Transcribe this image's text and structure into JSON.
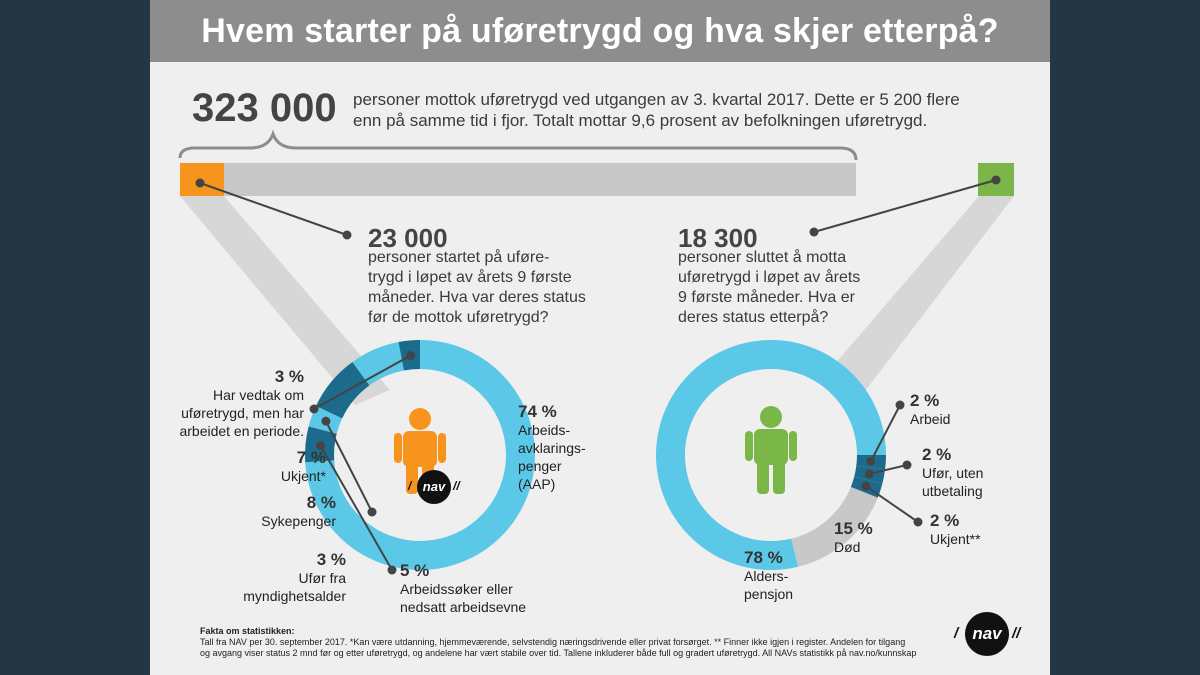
{
  "header": {
    "title": "Hvem starter på uføretrygd og hva skjer etterpå?"
  },
  "intro": {
    "big_number": "323 000",
    "text_line1": "personer mottok uføretrygd ved utgangen av 3. kvartal 2017. Dette er 5 200 flere",
    "text_line2": "enn på samme tid i fjor. Totalt mottar 9,6 prosent av befolkningen uføretrygd."
  },
  "left_panel": {
    "big_number": "23 000",
    "lines": [
      "personer startet på uføre-",
      "trygd i løpet av årets 9 første",
      "måneder. Hva var deres status",
      "før de mottok uføretrygd?"
    ],
    "colors": {
      "accent": "#f7941d",
      "arc_main": "#5bc8e8",
      "arc_dark": "#1a5a7a"
    }
  },
  "right_panel": {
    "big_number": "18 300",
    "lines": [
      "personer sluttet å motta",
      "uføretrygd i løpet av årets",
      "9 første måneder. Hva er",
      "deres status etterpå?"
    ],
    "colors": {
      "accent": "#7ab648",
      "arc_main": "#5bc8e8",
      "arc_gray": "#c8c8c8",
      "arc_dark": "#1a5a7a"
    }
  },
  "chart_data": [
    {
      "type": "pie",
      "variant": "donut",
      "categories": [
        "Arbeidsavklaringspenger (AAP)",
        "Arbeidssøker eller nedsatt arbeidsevne",
        "Ufør fra myndighetsalder",
        "Sykepenger",
        "Ukjent*",
        "Har vedtak om uføretrygd, men har arbeidet en periode."
      ],
      "values": [
        74,
        5,
        3,
        8,
        7,
        3
      ],
      "labels": [
        {
          "pct": "74 %",
          "lines": [
            "Arbeids-",
            "avklarings-",
            "penger",
            "(AAP)"
          ]
        },
        {
          "pct": "5 %",
          "lines": [
            "Arbeidssøker eller",
            "nedsatt arbeidsevne"
          ]
        },
        {
          "pct": "3 %",
          "lines": [
            "Ufør fra",
            "myndighetsalder"
          ]
        },
        {
          "pct": "8 %",
          "lines": [
            "Sykepenger"
          ]
        },
        {
          "pct": "7 %",
          "lines": [
            "Ukjent*"
          ]
        },
        {
          "pct": "3 %",
          "lines": [
            "Har vedtak om",
            "uføretrygd, men har",
            "arbeidet en periode."
          ]
        }
      ],
      "colors": [
        "#5bc8e8",
        "#1d6b8c",
        "#5bc8e8",
        "#1d6b8c",
        "#5bc8e8",
        "#1d6b8c"
      ]
    },
    {
      "type": "pie",
      "variant": "donut",
      "categories": [
        "Arbeid",
        "Ufør, uten utbetaling",
        "Ukjent**",
        "Død",
        "Alderspensjon"
      ],
      "values": [
        2,
        2,
        2,
        15,
        78
      ],
      "labels": [
        {
          "pct": "2 %",
          "lines": [
            "Arbeid"
          ]
        },
        {
          "pct": "2 %",
          "lines": [
            "Ufør, uten",
            "utbetaling"
          ]
        },
        {
          "pct": "2 %",
          "lines": [
            "Ukjent**"
          ]
        },
        {
          "pct": "15 %",
          "lines": [
            "Død"
          ]
        },
        {
          "pct": "78 %",
          "lines": [
            "Alders-",
            "pensjon"
          ]
        }
      ],
      "colors": [
        "#1d6b8c",
        "#1d6b8c",
        "#1d6b8c",
        "#c8c8c8",
        "#5bc8e8"
      ]
    }
  ],
  "footer": {
    "label": "Fakta om statistikken:",
    "line1": "Tall fra NAV per 30. september 2017. *Kan være utdanning, hjemmeværende, selvstendig næringsdrivende eller privat forsørget. ** Finner ikke igjen i register. Andelen for tilgang",
    "line2": "og avgang viser status 2 mnd før og etter uføretrygd, og andelene har vært stabile over tid. Tallene inkluderer både full og gradert uføretrygd. All NAVs statistikk på nav.no/kunnskap"
  },
  "logo": {
    "text": "nav"
  }
}
